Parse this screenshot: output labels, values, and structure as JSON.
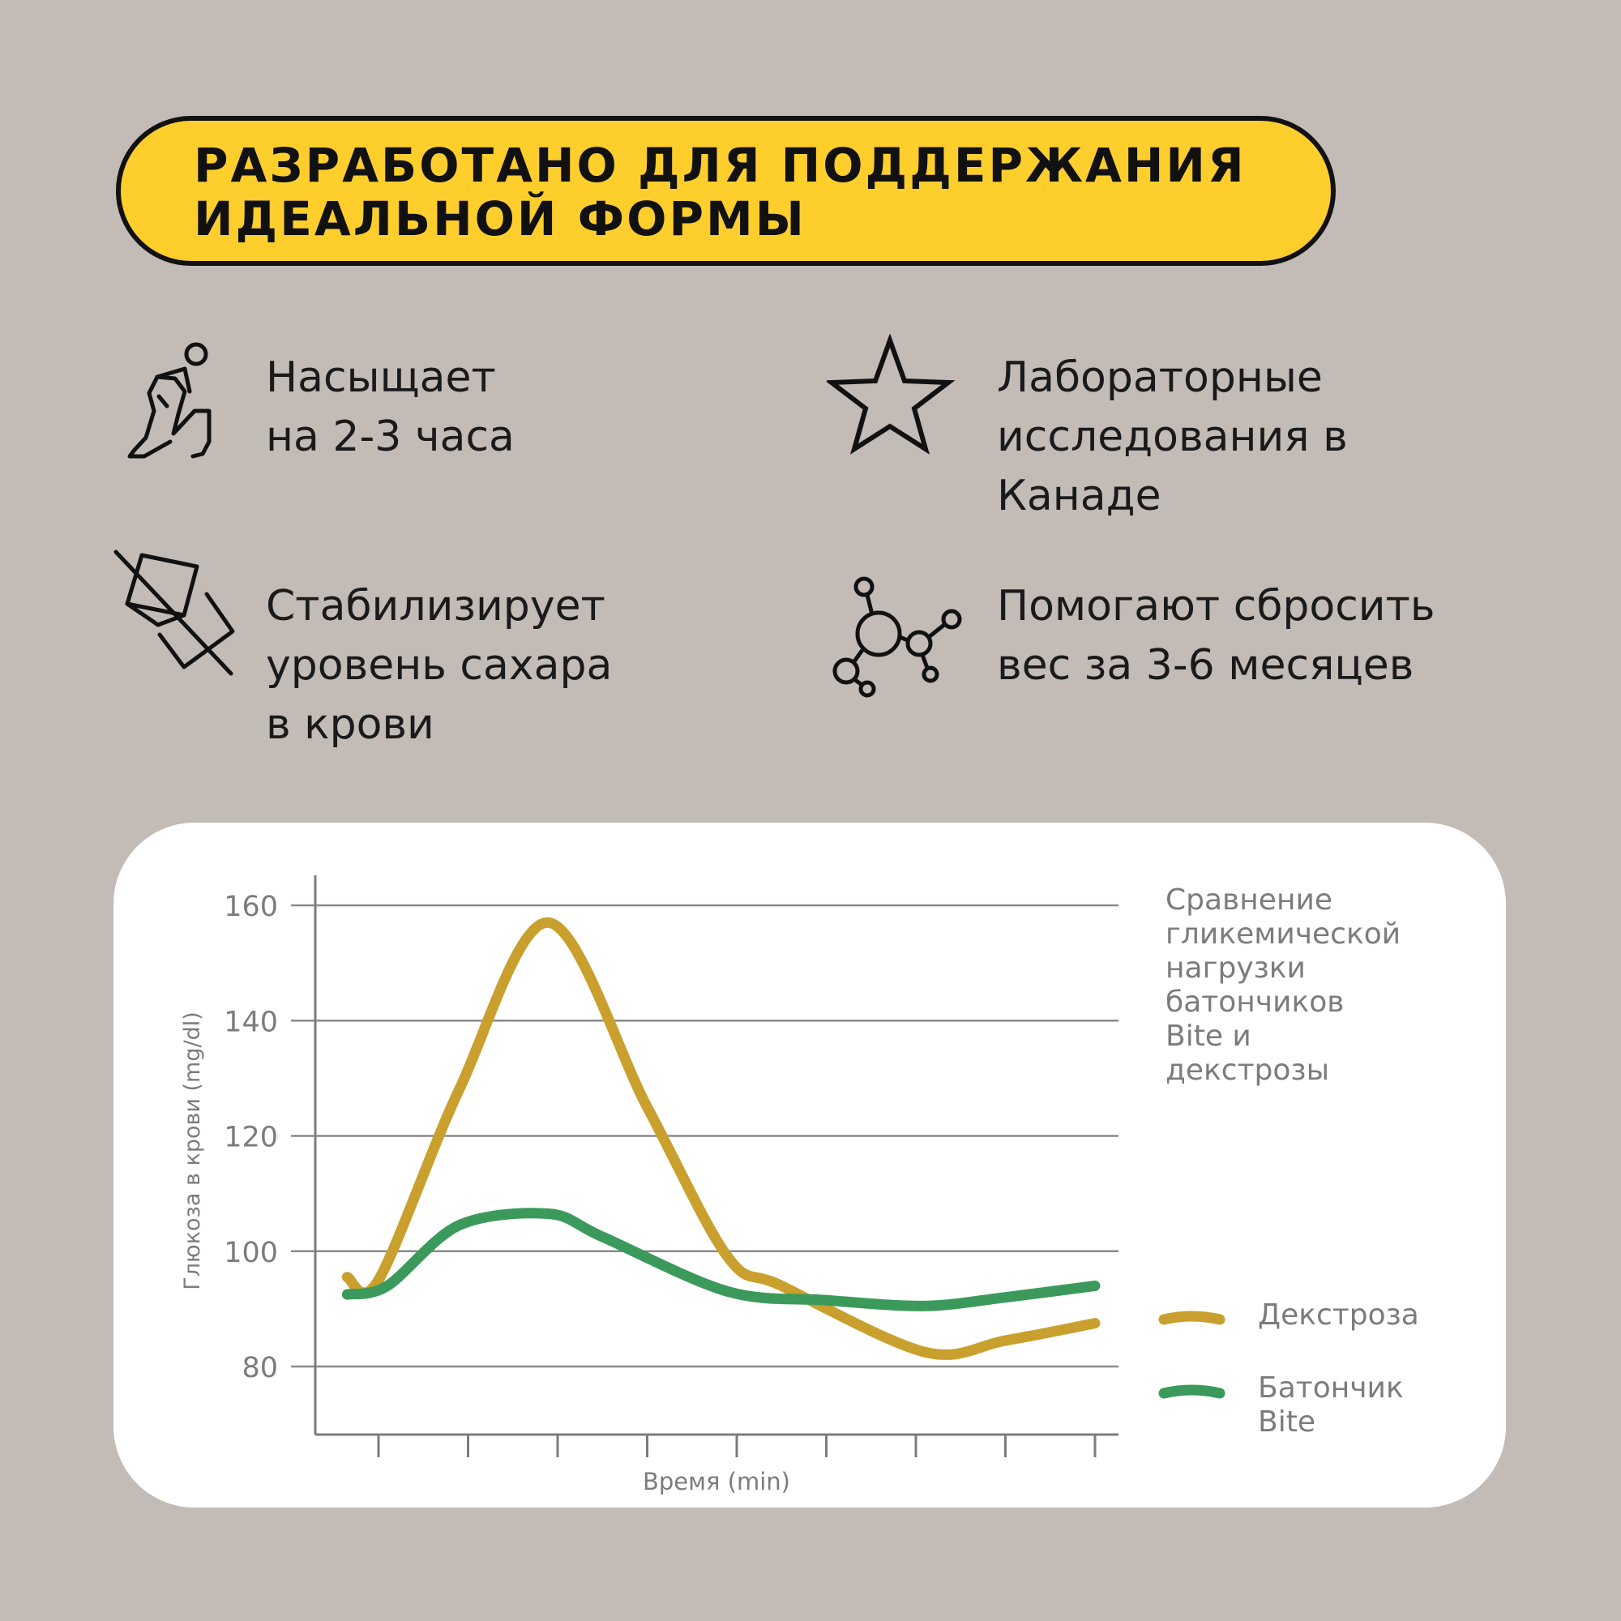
{
  "headline": {
    "line1": "РАЗРАБОТАНО ДЛЯ ПОДДЕРЖАНИЯ",
    "line2": "ИДЕАЛЬНОЙ ФОРМЫ"
  },
  "features": [
    {
      "icon": "stretching-person-icon",
      "lines": [
        "Насыщает",
        "на 2-3 часа"
      ]
    },
    {
      "icon": "star-icon",
      "lines": [
        "Лабораторные",
        "исследования в",
        "Канаде"
      ]
    },
    {
      "icon": "no-sugar-cube-icon",
      "lines": [
        "Стабилизирует",
        "уровень сахара",
        "в крови"
      ]
    },
    {
      "icon": "molecule-icon",
      "lines": [
        "Помогают сбросить",
        "вес за 3-6 месяцев"
      ]
    }
  ],
  "colors": {
    "background": "#c3bbb6",
    "headline_fill": "#fece2d",
    "dextrose": "#c9a02e",
    "bite": "#3b9a5b",
    "grid": "#8a8a8a",
    "muted_text": "#7c7c7c"
  },
  "chart_data": {
    "type": "line",
    "title_lines": [
      "Сравнение",
      "гликемической",
      "нагрузки",
      "батончиков",
      "Bite и",
      "декстрозы"
    ],
    "xlabel": "Время (min)",
    "ylabel": "Глюкоза в крови (mg/dl)",
    "ylim": [
      70,
      165
    ],
    "yticks": [
      80,
      100,
      120,
      140,
      160
    ],
    "x_ticks_count": 9,
    "grid": true,
    "legend_position": "right",
    "series": [
      {
        "name": "Декстроза",
        "color": "#c9a02e",
        "points": [
          [
            -0.35,
            95.5
          ],
          [
            0,
            95
          ],
          [
            0.9,
            128
          ],
          [
            1.9,
            157
          ],
          [
            3.0,
            125
          ],
          [
            3.9,
            99
          ],
          [
            4.5,
            94
          ],
          [
            6.1,
            82.5
          ],
          [
            7.0,
            84.5
          ],
          [
            8.0,
            87.5
          ]
        ]
      },
      {
        "name": "Батончик Bite",
        "color": "#3b9a5b",
        "points": [
          [
            -0.35,
            92.5
          ],
          [
            0.1,
            94
          ],
          [
            0.9,
            104.5
          ],
          [
            1.9,
            106.5
          ],
          [
            2.5,
            102.5
          ],
          [
            3.9,
            93
          ],
          [
            5.0,
            91.5
          ],
          [
            6.1,
            90.5
          ],
          [
            7.0,
            92
          ],
          [
            8.0,
            94
          ]
        ]
      }
    ],
    "legend": [
      {
        "label_lines": [
          "Декстроза"
        ],
        "color": "#c9a02e"
      },
      {
        "label_lines": [
          "Батончик",
          "Bite"
        ],
        "color": "#3b9a5b"
      }
    ]
  }
}
